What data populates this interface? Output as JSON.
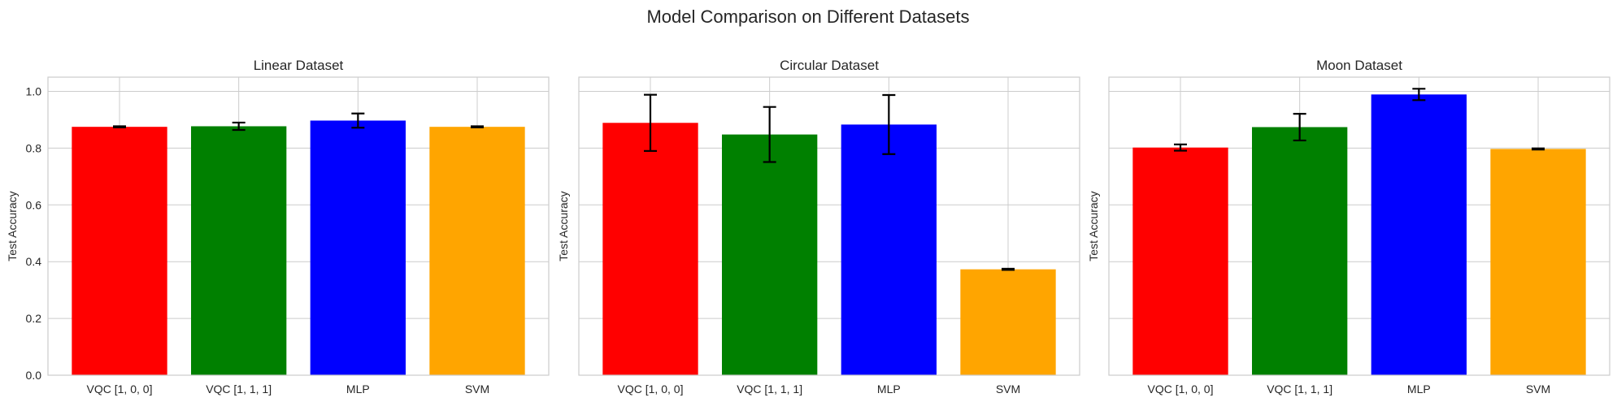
{
  "chart_data": [
    {
      "type": "bar",
      "title": "Linear Dataset",
      "ylabel": "Test Accuracy",
      "xlabel": "",
      "categories": [
        "VQC [1, 0, 0]",
        "VQC [1, 1, 1]",
        "MLP",
        "SVM"
      ],
      "values": [
        0.875,
        0.877,
        0.897,
        0.875
      ],
      "errors": [
        0.002,
        0.013,
        0.025,
        0.002
      ],
      "colors": [
        "#ff0000",
        "#008000",
        "#0000ff",
        "#ffa500"
      ],
      "ylim": [
        0,
        1.05
      ],
      "yticks": [
        "0.0",
        "0.2",
        "0.4",
        "0.6",
        "0.8",
        "1.0"
      ],
      "grid": true
    },
    {
      "type": "bar",
      "title": "Circular Dataset",
      "ylabel": "Test Accuracy",
      "xlabel": "",
      "categories": [
        "VQC [1, 0, 0]",
        "VQC [1, 1, 1]",
        "MLP",
        "SVM"
      ],
      "values": [
        0.889,
        0.848,
        0.883,
        0.373
      ],
      "errors": [
        0.099,
        0.097,
        0.104,
        0.002
      ],
      "colors": [
        "#ff0000",
        "#008000",
        "#0000ff",
        "#ffa500"
      ],
      "ylim": [
        0,
        1.05
      ],
      "grid": true
    },
    {
      "type": "bar",
      "title": "Moon Dataset",
      "ylabel": "Test Accuracy",
      "xlabel": "",
      "categories": [
        "VQC [1, 0, 0]",
        "VQC [1, 1, 1]",
        "MLP",
        "SVM"
      ],
      "values": [
        0.802,
        0.874,
        0.989,
        0.797
      ],
      "errors": [
        0.011,
        0.047,
        0.02,
        0.002
      ],
      "colors": [
        "#ff0000",
        "#008000",
        "#0000ff",
        "#ffa500"
      ],
      "ylim": [
        0,
        1.05
      ],
      "grid": true
    }
  ],
  "suptitle": "Model Comparison on Different Datasets"
}
